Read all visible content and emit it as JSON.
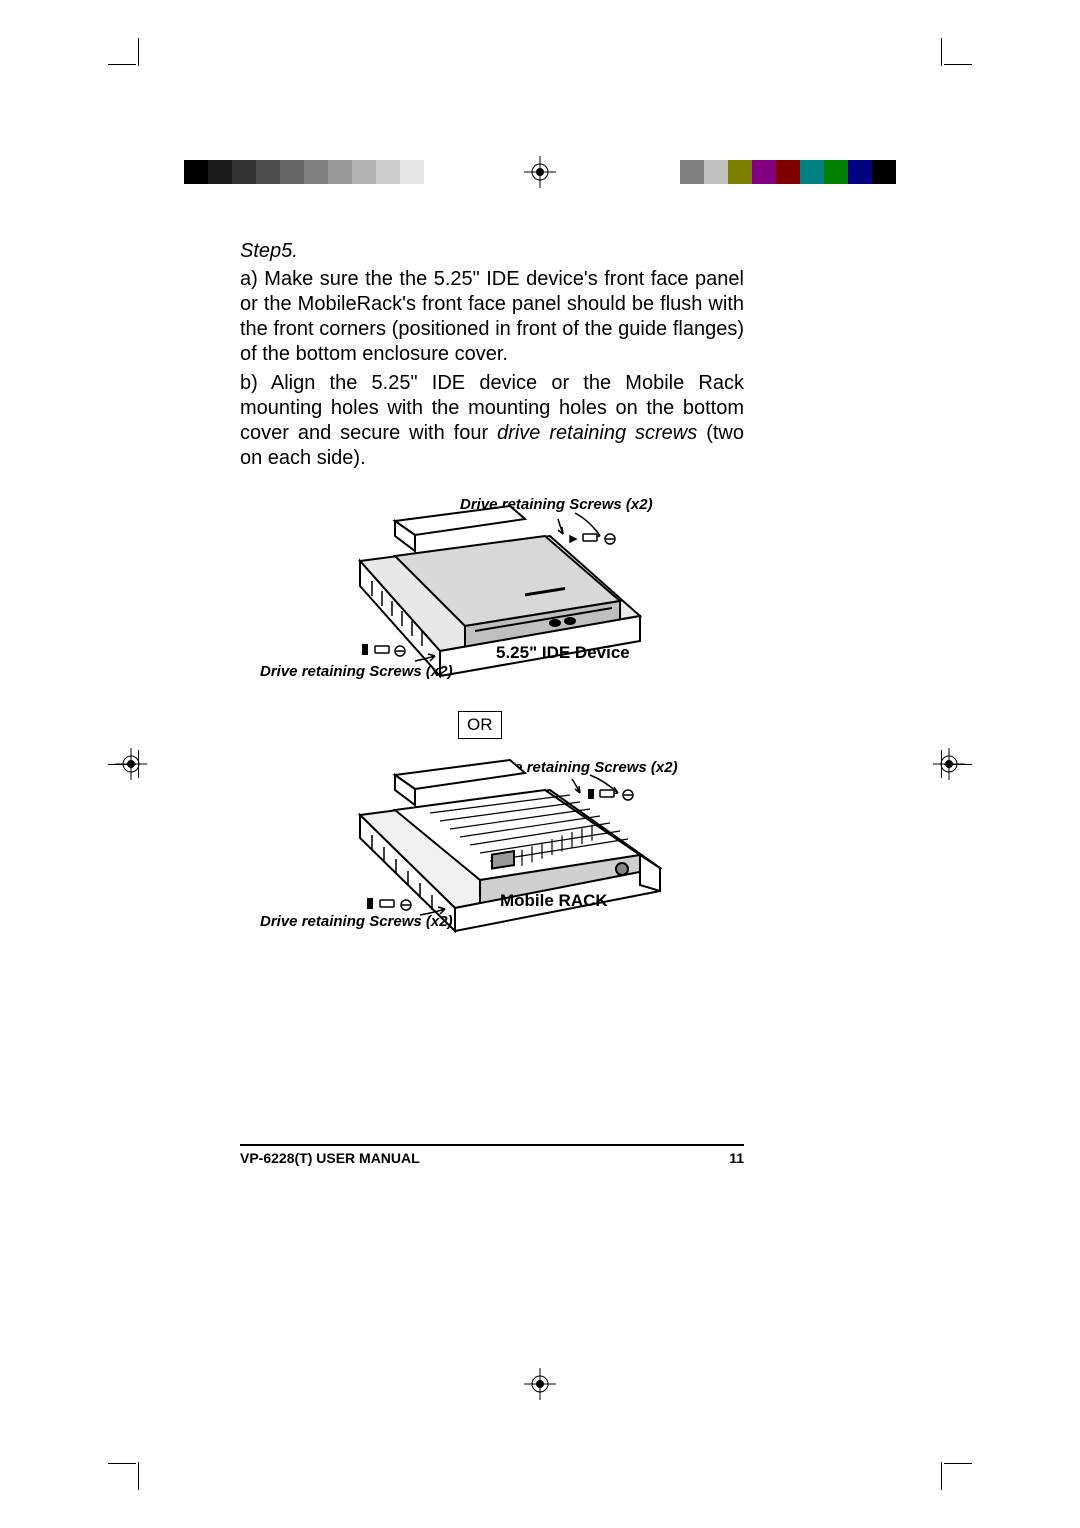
{
  "step": {
    "title": "Step5.",
    "para_a": "a) Make sure the the 5.25\" IDE device's front face panel or the MobileRack's front face panel should be flush with the front corners (positioned in front of the guide flanges) of the bottom enclosure cover.",
    "para_b_prefix": "b) Align the 5.25\" IDE device or the Mobile Rack mounting holes with the mounting holes on the bottom cover and secure with four ",
    "para_b_italic": "drive retaining screws",
    "para_b_suffix": " (two on each side)."
  },
  "figure1": {
    "label_top": "Drive retaining Screws (x2)",
    "label_bottom": "Drive retaining Screws (x2)",
    "device_label": "5.25\" IDE Device"
  },
  "or_label": "OR",
  "figure2": {
    "label_top": "Drive retaining Screws (x2)",
    "label_bottom": "Drive retaining Screws (x2)",
    "device_label": "Mobile RACK"
  },
  "footer": {
    "manual": "VP-6228(T) USER MANUAL",
    "page": "11"
  },
  "color_bars": {
    "left": [
      "#000000",
      "#1a1a1a",
      "#333333",
      "#4d4d4d",
      "#666666",
      "#808080",
      "#999999",
      "#b3b3b3",
      "#cccccc",
      "#e6e6e6",
      "#ffffff"
    ],
    "right": [
      "#000000",
      "#000080",
      "#008000",
      "#008080",
      "#800000",
      "#800080",
      "#808000",
      "#c0c0c0",
      "#808080",
      "#ffffff"
    ]
  }
}
